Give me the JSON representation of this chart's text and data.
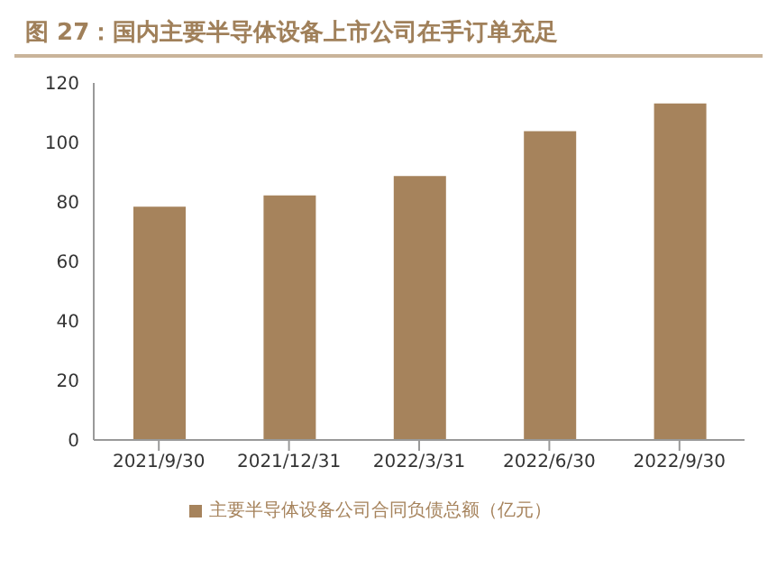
{
  "chart_data": {
    "type": "bar",
    "title": "图 27：国内主要半导体设备上市公司在手订单充足",
    "categories": [
      "2021/9/30",
      "2021/12/31",
      "2022/3/31",
      "2022/6/30",
      "2022/9/30"
    ],
    "series": [
      {
        "name": "主要半导体设备公司合同负债总额（亿元）",
        "color": "#a6835c",
        "values": [
          78.4,
          82.2,
          88.7,
          103.8,
          113.1
        ]
      }
    ],
    "ylim": [
      0,
      120
    ],
    "yticks": [
      0,
      20,
      40,
      60,
      80,
      100,
      120
    ],
    "grid": false,
    "legend": "bottom"
  }
}
